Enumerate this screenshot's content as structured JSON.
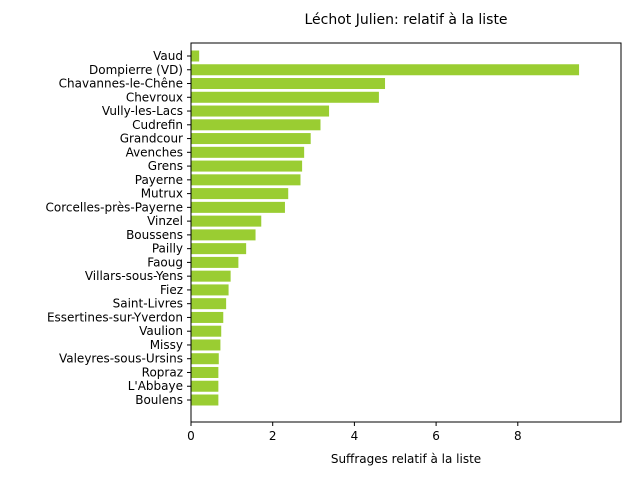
{
  "chart_data": {
    "type": "bar",
    "orientation": "horizontal",
    "title": "Léchot Julien: relatif à la liste",
    "xlabel": "Suffrages relatif à la liste",
    "ylabel": "",
    "xlim": [
      0,
      10
    ],
    "xticks": [
      0,
      2,
      4,
      6,
      8
    ],
    "grid": false,
    "bar_color": "#9acd32",
    "categories": [
      "Vaud",
      "Dompierre (VD)",
      "Chavannes-le-Chêne",
      "Chevroux",
      "Vully-les-Lacs",
      "Cudrefin",
      "Grandcour",
      "Avenches",
      "Grens",
      "Payerne",
      "Mutrux",
      "Corcelles-près-Payerne",
      "Vinzel",
      "Boussens",
      "Pailly",
      "Faoug",
      "Villars-sous-Yens",
      "Fiez",
      "Saint-Livres",
      "Essertines-sur-Yverdon",
      "Vaulion",
      "Missy",
      "Valeyres-sous-Ursins",
      "Ropraz",
      "L'Abbaye",
      "Boulens"
    ],
    "values": [
      0.2,
      9.5,
      4.75,
      4.6,
      3.38,
      3.17,
      2.93,
      2.77,
      2.72,
      2.68,
      2.38,
      2.3,
      1.72,
      1.58,
      1.35,
      1.16,
      0.97,
      0.92,
      0.86,
      0.79,
      0.74,
      0.72,
      0.68,
      0.67,
      0.67,
      0.67
    ]
  }
}
